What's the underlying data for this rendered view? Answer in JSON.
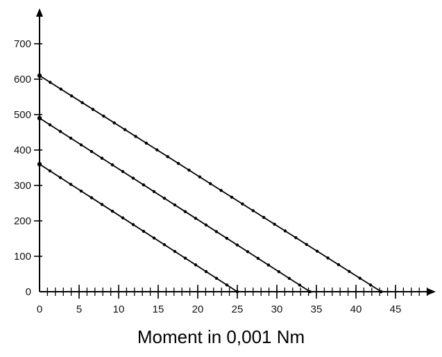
{
  "chart_data": {
    "type": "line",
    "title": "",
    "xlabel": "Moment in 0,001 Nm",
    "ylabel": "",
    "xlim": [
      0,
      50
    ],
    "ylim": [
      0,
      760
    ],
    "x_ticks": [
      0,
      5,
      10,
      15,
      20,
      25,
      30,
      35,
      40,
      45
    ],
    "x_tick_labels": [
      "0",
      "5",
      "10",
      "15",
      "20",
      "25",
      "30",
      "35",
      "40",
      "45"
    ],
    "x_minor_step": 1,
    "y_ticks": [
      0,
      100,
      200,
      300,
      400,
      500,
      600,
      700
    ],
    "y_tick_labels": [
      "0",
      "100",
      "200",
      "300",
      "400",
      "500",
      "600",
      "700"
    ],
    "grid": false,
    "series": [
      {
        "x": [
          0,
          43.2
        ],
        "y": [
          610,
          0
        ],
        "color": "#000000"
      },
      {
        "x": [
          0,
          34.2
        ],
        "y": [
          490,
          0
        ],
        "color": "#000000"
      },
      {
        "x": [
          0,
          25.0
        ],
        "y": [
          360,
          0
        ],
        "color": "#000000"
      }
    ]
  }
}
